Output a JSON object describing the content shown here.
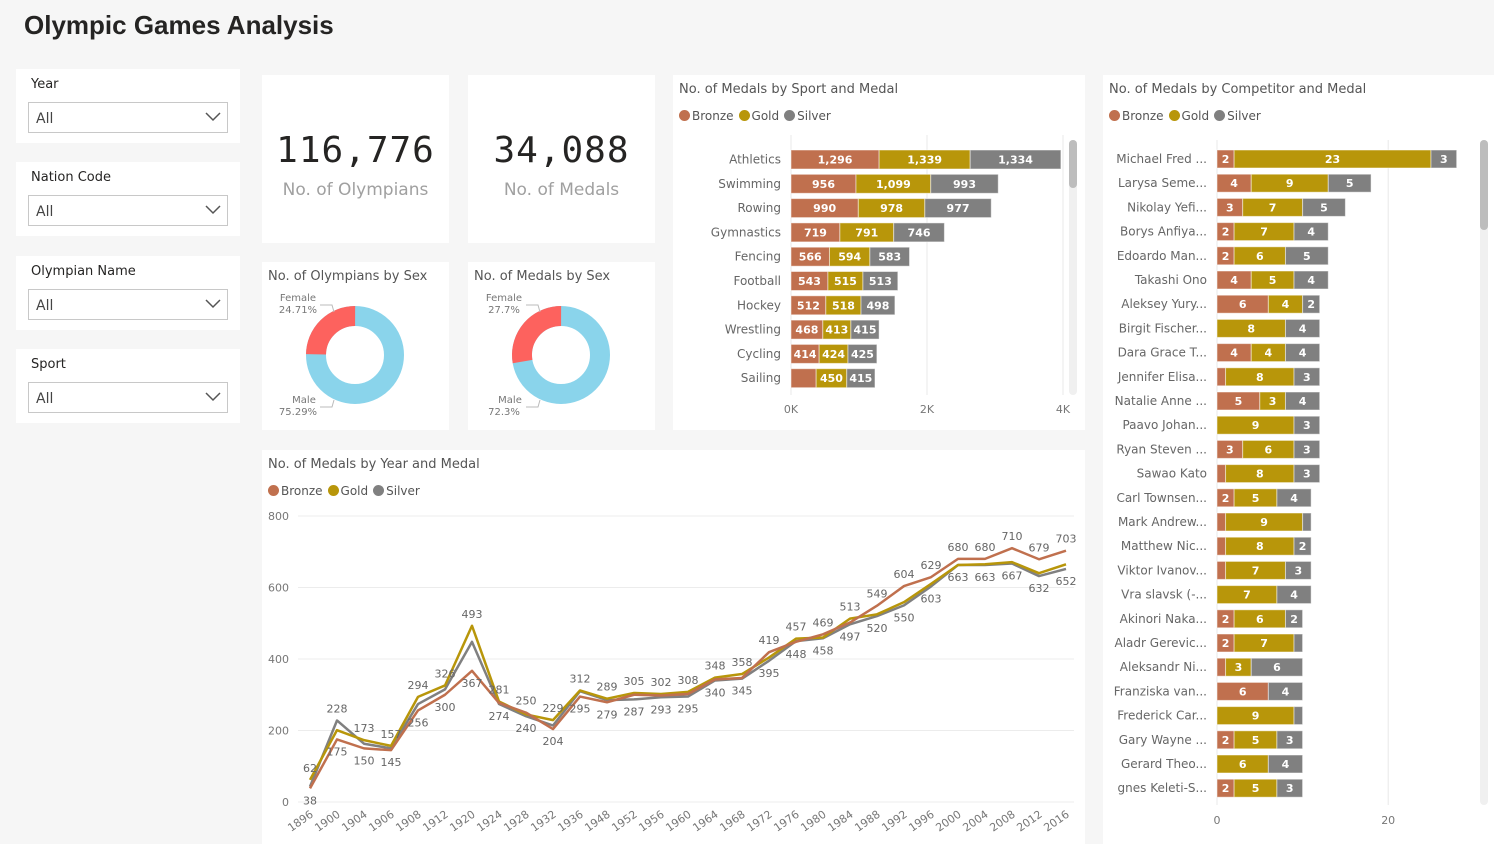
{
  "title": "Olympic Games Analysis",
  "colors": {
    "bronze": "#C0704E",
    "gold": "#B8960A",
    "silver": "#808080",
    "female": "#FD625E",
    "male": "#8AD4EB"
  },
  "slicers": [
    {
      "label": "Year",
      "value": "All",
      "icon": "chevron-down-icon"
    },
    {
      "label": "Nation Code",
      "value": "All",
      "icon": "chevron-down-icon"
    },
    {
      "label": "Olympian Name",
      "value": "All",
      "icon": "chevron-down-icon"
    },
    {
      "label": "Sport",
      "value": "All",
      "icon": "chevron-down-icon"
    }
  ],
  "kpis": [
    {
      "value": "116,776",
      "label": "No. of Olympians"
    },
    {
      "value": "34,088",
      "label": "No. of Medals"
    }
  ],
  "legend": [
    "Bronze",
    "Gold",
    "Silver"
  ],
  "chart_data": [
    {
      "type": "pie",
      "title": "No. of Olympians by Sex",
      "slices": [
        {
          "label": "Female",
          "value": 24.71,
          "text": "24.71%"
        },
        {
          "label": "Male",
          "value": 75.29,
          "text": "75.29%"
        }
      ],
      "donut": true
    },
    {
      "type": "pie",
      "title": "No. of Medals by Sex",
      "slices": [
        {
          "label": "Female",
          "value": 27.7,
          "text": "27.7%"
        },
        {
          "label": "Male",
          "value": 72.3,
          "text": "72.3%"
        }
      ],
      "donut": true
    },
    {
      "type": "bar",
      "orientation": "horizontal",
      "stacked": true,
      "title": "No. of Medals by Sport and Medal",
      "legend": "top-left",
      "categories": [
        "Athletics",
        "Swimming",
        "Rowing",
        "Gymnastics",
        "Fencing",
        "Football",
        "Hockey",
        "Wrestling",
        "Cycling",
        "Sailing"
      ],
      "series": [
        {
          "name": "Bronze",
          "values": [
            1296,
            956,
            990,
            719,
            566,
            543,
            512,
            468,
            414,
            370
          ]
        },
        {
          "name": "Gold",
          "values": [
            1339,
            1099,
            978,
            791,
            594,
            515,
            518,
            413,
            424,
            450
          ]
        },
        {
          "name": "Silver",
          "values": [
            1334,
            993,
            977,
            746,
            583,
            513,
            498,
            415,
            425,
            415
          ]
        }
      ],
      "xticks": [
        "0K",
        "2K",
        "4K"
      ],
      "xlim": [
        0,
        4000
      ],
      "grid": true
    },
    {
      "type": "bar",
      "orientation": "horizontal",
      "stacked": true,
      "title": "No. of Medals by Competitor and Medal",
      "legend": "top-left",
      "categories": [
        "Michael Fred ...",
        "Larysa Seme...",
        "Nikolay Yefi...",
        "Borys Anfiya...",
        "Edoardo Man...",
        "Takashi Ono",
        "Aleksey Yury...",
        "Birgit Fischer...",
        "Dara Grace T...",
        "Jennifer Elisa...",
        "Natalie Anne ...",
        "Paavo Johan...",
        "Ryan Steven ...",
        "Sawao Kato",
        "Carl Townsen...",
        "Mark Andrew...",
        "Matthew Nic...",
        "Viktor Ivanov...",
        "Vra slavsk (-...",
        "Akinori Naka...",
        "Aladr Gerevic...",
        "Aleksandr Ni...",
        "Franziska van...",
        "Frederick Car...",
        "Gary Wayne ...",
        "Gerard Theo...",
        "gnes Keleti-S..."
      ],
      "series": [
        {
          "name": "Bronze",
          "values": [
            2,
            4,
            3,
            2,
            2,
            4,
            6,
            0,
            4,
            1,
            5,
            0,
            3,
            1,
            2,
            1,
            1,
            1,
            0,
            2,
            2,
            1,
            6,
            0,
            2,
            0,
            2
          ]
        },
        {
          "name": "Gold",
          "values": [
            23,
            9,
            7,
            7,
            6,
            5,
            4,
            8,
            4,
            8,
            3,
            9,
            6,
            8,
            5,
            9,
            8,
            7,
            7,
            6,
            7,
            3,
            0,
            9,
            5,
            6,
            5
          ]
        },
        {
          "name": "Silver",
          "values": [
            3,
            5,
            5,
            4,
            5,
            4,
            2,
            4,
            4,
            3,
            4,
            3,
            3,
            3,
            4,
            1,
            2,
            3,
            4,
            2,
            1,
            6,
            4,
            1,
            3,
            4,
            3
          ]
        }
      ],
      "xticks": [
        "0",
        "20"
      ],
      "xlim": [
        0,
        30
      ],
      "grid": true
    },
    {
      "type": "line",
      "title": "No. of Medals by Year and Medal",
      "legend": "top-left",
      "x": [
        "1896",
        "1900",
        "1904",
        "1906",
        "1908",
        "1912",
        "1920",
        "1924",
        "1928",
        "1932",
        "1936",
        "1948",
        "1952",
        "1956",
        "1960",
        "1964",
        "1968",
        "1972",
        "1976",
        "1980",
        "1984",
        "1988",
        "1992",
        "1996",
        "2000",
        "2004",
        "2008",
        "2012",
        "2016"
      ],
      "series": [
        {
          "name": "Bronze",
          "values": [
            38,
            175,
            150,
            145,
            256,
            300,
            367,
            277,
            250,
            204,
            295,
            279,
            300,
            298,
            302,
            343,
            347,
            419,
            448,
            469,
            502,
            549,
            604,
            629,
            680,
            680,
            710,
            679,
            703
          ]
        },
        {
          "name": "Gold",
          "values": [
            62,
            201,
            173,
            157,
            294,
            326,
            493,
            281,
            245,
            229,
            312,
            289,
            305,
            302,
            308,
            348,
            358,
            404,
            457,
            460,
            513,
            525,
            559,
            610,
            663,
            665,
            671,
            640,
            665
          ]
        },
        {
          "name": "Silver",
          "values": [
            43,
            228,
            163,
            150,
            274,
            315,
            448,
            274,
            240,
            214,
            310,
            285,
            287,
            293,
            295,
            340,
            345,
            395,
            450,
            458,
            497,
            520,
            550,
            603,
            663,
            663,
            667,
            632,
            652
          ]
        }
      ],
      "yticks": [
        "0",
        "200",
        "400",
        "600",
        "800"
      ],
      "ylim": [
        0,
        800
      ],
      "grid": true
    }
  ]
}
